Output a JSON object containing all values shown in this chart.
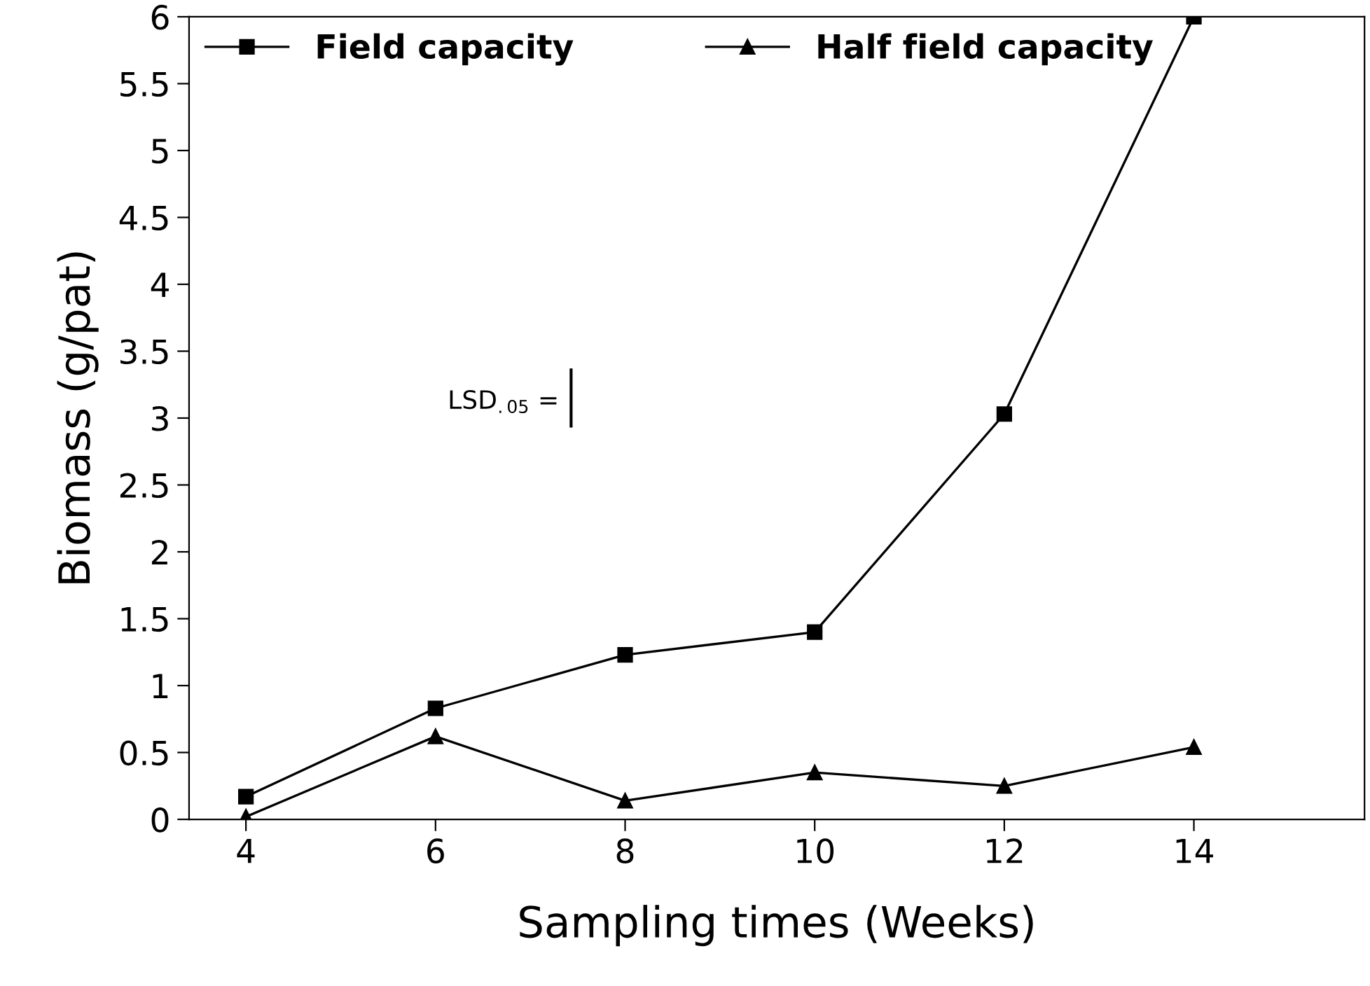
{
  "chart_data": {
    "type": "line",
    "x": [
      4,
      6,
      8,
      10,
      12,
      14
    ],
    "series": [
      {
        "name": "Field capacity",
        "color": "#000000",
        "marker": "square",
        "values": [
          0.17,
          0.83,
          1.23,
          1.4,
          3.03,
          6.0
        ]
      },
      {
        "name": "Half field capacity",
        "color": "#000000",
        "marker": "triangle",
        "values": [
          0.02,
          0.62,
          0.14,
          0.35,
          0.25,
          0.54
        ]
      }
    ],
    "xlabel": "Sampling times (Weeks)",
    "ylabel": "Biomass (g/pat)",
    "xlim": [
      3.4,
      15.8
    ],
    "xticks": [
      4,
      6,
      8,
      10,
      12,
      14
    ],
    "ylim": [
      0,
      6
    ],
    "yticks": [
      0,
      0.5,
      1,
      1.5,
      2,
      2.5,
      3,
      3.5,
      4,
      4.5,
      5,
      5.5,
      6
    ],
    "annotations": [
      "LSD$_{.05}$ ="
    ],
    "legend": "top left",
    "grid": false,
    "line_style": "solid"
  }
}
